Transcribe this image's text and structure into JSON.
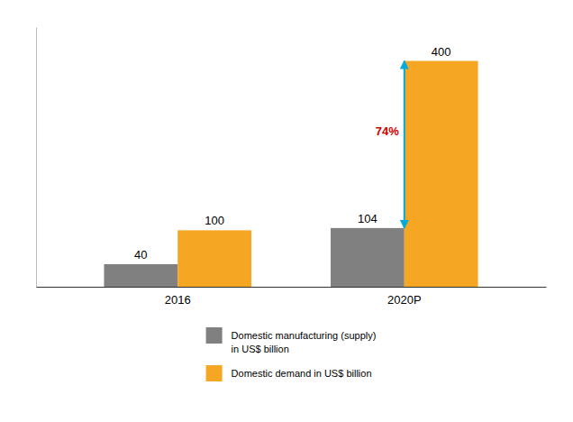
{
  "chart_data": {
    "type": "bar",
    "categories": [
      "2016",
      "2020P"
    ],
    "series": [
      {
        "name": "Domestic manufacturing (supply)\nin US$ billion",
        "color": "#808080",
        "values": [
          40,
          104
        ]
      },
      {
        "name": "Domestic demand in US$ billion",
        "color": "#F5A623",
        "values": [
          100,
          400
        ]
      }
    ],
    "ylim": [
      0,
      460
    ],
    "data_labels": true,
    "tick_labels": "x",
    "legend": "bottom",
    "annotations": [
      {
        "text": "74%",
        "color": "#CC0000",
        "arrow_color": "#00AADD",
        "category": "2020P"
      }
    ]
  }
}
